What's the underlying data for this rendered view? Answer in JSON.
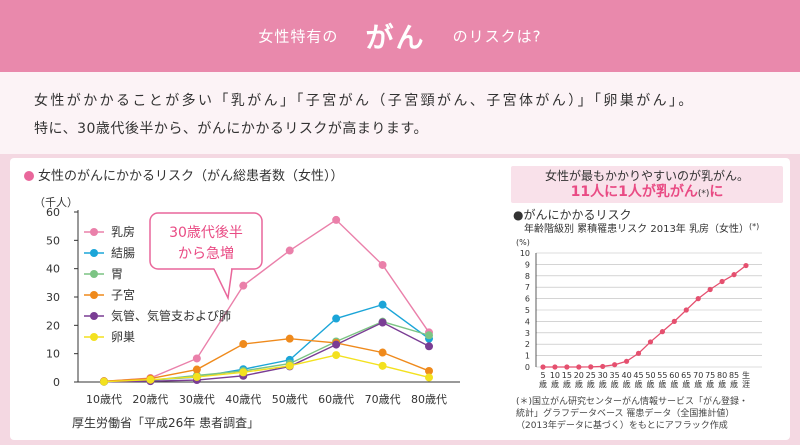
{
  "header": {
    "title_pre": "女性特有の",
    "title_main": "がん",
    "title_post": "のリスクは?"
  },
  "intro": {
    "line1": "女性がかかることが多い「乳がん」「子宮がん（子宮頸がん、子宮体がん）」「卵巣がん」。",
    "line2": "特に、30歳代後半から、がんにかかるリスクが高まります。"
  },
  "left_chart": {
    "title": "女性のがんにかかるリスク（がん総患者数（女性））",
    "source": "厚生労働省「平成26年 患者調査」",
    "callout": [
      "30歳代後半",
      "から急増"
    ]
  },
  "right_panel": {
    "highlight_line1": "女性が最もかかりやすいのが乳がん。",
    "highlight_num": "11人に1人",
    "highlight_mid": "が乳がん",
    "highlight_ast": "(*)",
    "highlight_end": "に",
    "chart_title": "●がんにかかるリスク",
    "chart_subtitle": "年齢階級別 累積罹患リスク 2013年 乳房（女性）",
    "chart_subtitle_ast": "(*)",
    "note_lines": [
      "(＊)国立がん研究センターがん情報サービス「がん登録・",
      "統計」グラフデータベース 罹患データ（全国推計値）",
      "（2013年データに基づく）をもとにアフラック作成"
    ]
  },
  "chart_data": [
    {
      "type": "line",
      "title": "女性のがんにかかるリスク（がん総患者数（女性））",
      "ylabel": "（千人）",
      "ylim": [
        0,
        60
      ],
      "yticks": [
        0,
        10,
        20,
        30,
        40,
        50,
        60
      ],
      "categories": [
        "10歳代",
        "20歳代",
        "30歳代",
        "40歳代",
        "50歳代",
        "60歳代",
        "70歳代",
        "80歳代"
      ],
      "legend_position": "top-left",
      "series": [
        {
          "name": "乳房",
          "color": "#ea80aa",
          "values": [
            0.2,
            1.4,
            8.3,
            34,
            46.4,
            57.2,
            41.3,
            17.5
          ]
        },
        {
          "name": "結腸",
          "color": "#1ba5d8",
          "values": [
            0.1,
            0.7,
            1.7,
            4.5,
            7.8,
            22.4,
            27.3,
            15.3
          ]
        },
        {
          "name": "胃",
          "color": "#7cc484",
          "values": [
            0.2,
            0.6,
            2.3,
            3.9,
            6.5,
            14.3,
            21.3,
            16.5
          ]
        },
        {
          "name": "子宮",
          "color": "#ef8a1c",
          "values": [
            0.3,
            1.2,
            4.4,
            13.4,
            15.3,
            13.8,
            10.4,
            3.9
          ]
        },
        {
          "name": "気管、気管支および肺",
          "color": "#7a3d94",
          "values": [
            0.1,
            0.3,
            0.7,
            2.2,
            5.5,
            13.2,
            21.0,
            12.6
          ]
        },
        {
          "name": "卵巣",
          "color": "#f3e11f",
          "values": [
            0.1,
            0.8,
            1.8,
            3.4,
            5.7,
            9.5,
            5.7,
            1.6
          ]
        }
      ]
    },
    {
      "type": "line",
      "title": "●がんにかかるリスク",
      "subtitle": "年齢階級別 累積罹患リスク 2013年 乳房（女性）(*)",
      "ylabel": "(%)",
      "ylim": [
        0,
        10
      ],
      "yticks": [
        0,
        1,
        2,
        3,
        4,
        5,
        6,
        7,
        8,
        9,
        10
      ],
      "x_label_rows": [
        [
          "5",
          "10",
          "15",
          "20",
          "25",
          "30",
          "35",
          "40",
          "45",
          "50",
          "55",
          "60",
          "65",
          "70",
          "75",
          "80",
          "85",
          "生"
        ],
        [
          "歳",
          "歳",
          "歳",
          "歳",
          "歳",
          "歳",
          "歳",
          "歳",
          "歳",
          "歳",
          "歳",
          "歳",
          "歳",
          "歳",
          "歳",
          "歳",
          "歳",
          "涯"
        ]
      ],
      "series": [
        {
          "name": "乳房（女性）",
          "color": "#e5506f",
          "values": [
            0,
            0,
            0,
            0,
            0.01,
            0.05,
            0.2,
            0.5,
            1.2,
            2.2,
            3.1,
            4.0,
            5.0,
            6.0,
            6.8,
            7.5,
            8.1,
            8.9
          ]
        }
      ]
    }
  ]
}
